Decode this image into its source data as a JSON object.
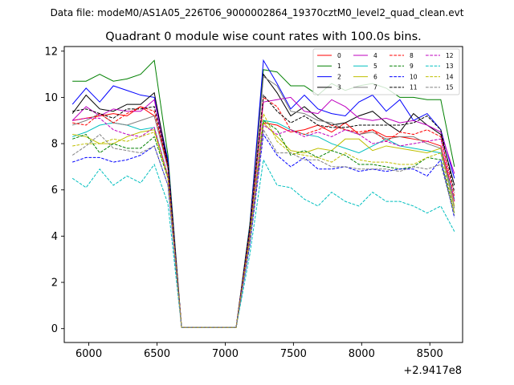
{
  "chart_data": {
    "type": "line",
    "suptitle": "Data file: modeM0/AS1A05_226T06_9000002864_19370cztM0_level2_quad_clean.evt",
    "title": "Quadrant 0 module wise count rates with 100.0s bins.",
    "xlabel": "",
    "ylabel": "",
    "x_offset_label": "+2.9417e8",
    "xlim": [
      5820,
      8740
    ],
    "ylim": [
      -0.6,
      12.2
    ],
    "xticks": [
      6000,
      6500,
      7000,
      7500,
      8000,
      8500
    ],
    "yticks": [
      0,
      2,
      4,
      6,
      8,
      10,
      12
    ],
    "xtick_labels": [
      "6000",
      "6500",
      "7000",
      "7500",
      "8000",
      "8500"
    ],
    "ytick_labels": [
      "0",
      "2",
      "4",
      "6",
      "8",
      "10",
      "12"
    ],
    "legend_position": "top-right",
    "x": [
      5880,
      5980,
      6080,
      6180,
      6280,
      6380,
      6480,
      6580,
      6680,
      6780,
      6880,
      6980,
      7080,
      7180,
      7280,
      7380,
      7480,
      7580,
      7680,
      7780,
      7880,
      7980,
      8080,
      8180,
      8280,
      8380,
      8480,
      8580,
      8680
    ],
    "series": [
      {
        "name": "0",
        "color": "#ff0000",
        "dash": "solid",
        "values": [
          9.0,
          9.1,
          9.2,
          9.3,
          9.2,
          9.6,
          9.2,
          7.0,
          0.05,
          0.05,
          0.05,
          0.05,
          0.05,
          4.0,
          8.9,
          8.8,
          8.5,
          8.6,
          8.8,
          8.5,
          8.9,
          8.4,
          8.6,
          8.3,
          8.3,
          8.2,
          8.1,
          7.9,
          5.5
        ]
      },
      {
        "name": "1",
        "color": "#008000",
        "dash": "solid",
        "values": [
          10.7,
          10.7,
          11.0,
          10.7,
          10.8,
          11.0,
          11.6,
          7.5,
          0.05,
          0.05,
          0.05,
          0.05,
          0.05,
          4.5,
          11.2,
          11.1,
          10.5,
          10.5,
          10.1,
          10.6,
          10.3,
          10.5,
          10.6,
          10.4,
          10.0,
          10.0,
          9.9,
          9.9,
          7.0
        ]
      },
      {
        "name": "2",
        "color": "#0000ff",
        "dash": "solid",
        "values": [
          9.7,
          10.4,
          9.8,
          10.5,
          10.3,
          10.1,
          10.0,
          7.3,
          0.05,
          0.05,
          0.05,
          0.05,
          0.05,
          4.4,
          11.6,
          10.6,
          9.5,
          10.1,
          9.5,
          9.3,
          9.2,
          9.8,
          10.1,
          9.4,
          9.9,
          9.0,
          9.3,
          8.6,
          6.5
        ]
      },
      {
        "name": "3",
        "color": "#000000",
        "dash": "solid",
        "values": [
          9.3,
          10.1,
          9.5,
          9.4,
          9.7,
          9.7,
          10.2,
          7.1,
          0.05,
          0.05,
          0.05,
          0.05,
          0.05,
          4.3,
          11.0,
          10.2,
          9.2,
          9.6,
          9.1,
          8.8,
          8.9,
          9.2,
          9.4,
          8.9,
          8.5,
          9.3,
          8.8,
          8.4,
          6.2
        ]
      },
      {
        "name": "4",
        "color": "#bf00bf",
        "dash": "solid",
        "values": [
          9.0,
          9.6,
          9.2,
          9.5,
          9.4,
          9.4,
          9.9,
          7.0,
          0.05,
          0.05,
          0.05,
          0.05,
          0.05,
          4.2,
          9.8,
          9.9,
          10.0,
          9.4,
          9.3,
          9.9,
          9.6,
          9.1,
          9.0,
          9.1,
          8.9,
          9.0,
          8.8,
          8.5,
          6.7
        ]
      },
      {
        "name": "5",
        "color": "#00bfbf",
        "dash": "solid",
        "values": [
          8.3,
          8.5,
          8.8,
          8.9,
          8.8,
          8.6,
          8.7,
          6.6,
          0.05,
          0.05,
          0.05,
          0.05,
          0.05,
          4.0,
          9.0,
          8.9,
          8.6,
          8.4,
          8.3,
          8.0,
          7.8,
          7.6,
          7.9,
          8.2,
          7.9,
          7.8,
          7.7,
          7.6,
          5.6
        ]
      },
      {
        "name": "6",
        "color": "#bfbf00",
        "dash": "solid",
        "values": [
          8.4,
          8.3,
          8.0,
          8.0,
          8.3,
          8.5,
          8.6,
          6.6,
          0.05,
          0.05,
          0.05,
          0.05,
          0.05,
          3.9,
          8.9,
          8.3,
          7.7,
          7.6,
          7.8,
          7.7,
          8.2,
          8.2,
          7.7,
          7.9,
          7.8,
          7.7,
          7.6,
          7.8,
          5.3
        ]
      },
      {
        "name": "7",
        "color": "#808080",
        "dash": "solid",
        "values": [
          8.8,
          9.0,
          9.3,
          8.9,
          8.8,
          9.0,
          9.2,
          6.9,
          0.05,
          0.05,
          0.05,
          0.05,
          0.05,
          4.2,
          10.9,
          10.5,
          9.4,
          9.3,
          9.0,
          8.9,
          8.6,
          8.4,
          8.5,
          8.2,
          8.3,
          8.3,
          8.0,
          7.8,
          5.2
        ]
      },
      {
        "name": "8",
        "color": "#ff0000",
        "dash": "dashed",
        "values": [
          8.9,
          8.8,
          9.3,
          8.9,
          9.3,
          9.6,
          9.4,
          7.0,
          0.05,
          0.05,
          0.05,
          0.05,
          0.05,
          4.3,
          10.0,
          9.6,
          8.6,
          8.4,
          8.6,
          8.8,
          8.6,
          8.5,
          8.6,
          8.1,
          8.5,
          8.4,
          8.6,
          8.3,
          5.7
        ]
      },
      {
        "name": "9",
        "color": "#008000",
        "dash": "dashed",
        "values": [
          8.2,
          8.4,
          7.6,
          8.0,
          7.8,
          7.8,
          8.3,
          6.5,
          0.05,
          0.05,
          0.05,
          0.05,
          0.05,
          3.8,
          9.0,
          8.6,
          7.5,
          7.7,
          7.4,
          7.7,
          7.5,
          7.1,
          7.1,
          7.0,
          6.9,
          7.0,
          7.4,
          7.3,
          5.0
        ]
      },
      {
        "name": "10",
        "color": "#0000ff",
        "dash": "dashed",
        "values": [
          7.2,
          7.4,
          7.4,
          7.2,
          7.3,
          7.5,
          7.9,
          6.2,
          0.05,
          0.05,
          0.05,
          0.05,
          0.05,
          3.6,
          8.4,
          7.5,
          7.0,
          7.4,
          6.9,
          6.9,
          7.0,
          6.8,
          6.9,
          6.8,
          6.9,
          6.9,
          6.6,
          7.3,
          4.8
        ]
      },
      {
        "name": "11",
        "color": "#000000",
        "dash": "dashed",
        "values": [
          9.4,
          9.5,
          9.3,
          9.1,
          9.5,
          9.5,
          9.6,
          7.1,
          0.05,
          0.05,
          0.05,
          0.05,
          0.05,
          4.3,
          10.1,
          9.4,
          8.9,
          9.2,
          8.8,
          8.7,
          8.7,
          8.8,
          8.8,
          8.8,
          8.8,
          8.9,
          9.2,
          8.6,
          5.9
        ]
      },
      {
        "name": "12",
        "color": "#bf00bf",
        "dash": "dashed",
        "values": [
          9.0,
          9.1,
          9.1,
          8.6,
          8.4,
          8.3,
          8.7,
          6.6,
          0.05,
          0.05,
          0.05,
          0.05,
          0.05,
          4.0,
          8.8,
          8.4,
          8.6,
          8.3,
          8.5,
          8.3,
          8.6,
          8.4,
          8.0,
          8.1,
          7.9,
          8.0,
          8.1,
          8.2,
          5.5
        ]
      },
      {
        "name": "13",
        "color": "#00bfbf",
        "dash": "dashed",
        "values": [
          6.5,
          6.1,
          6.9,
          6.2,
          6.6,
          6.3,
          7.1,
          5.4,
          0.05,
          0.05,
          0.05,
          0.05,
          0.05,
          3.2,
          7.3,
          6.2,
          6.1,
          5.6,
          5.3,
          5.9,
          5.5,
          5.3,
          5.9,
          5.5,
          5.5,
          5.3,
          5.0,
          5.3,
          4.2
        ]
      },
      {
        "name": "14",
        "color": "#bfbf00",
        "dash": "dashed",
        "values": [
          7.9,
          8.0,
          8.0,
          8.2,
          8.1,
          8.3,
          8.5,
          6.5,
          0.05,
          0.05,
          0.05,
          0.05,
          0.05,
          3.9,
          9.3,
          8.1,
          7.6,
          7.5,
          7.4,
          7.2,
          7.6,
          7.3,
          7.2,
          7.2,
          7.1,
          7.1,
          7.4,
          7.6,
          5.0
        ]
      },
      {
        "name": "15",
        "color": "#808080",
        "dash": "dashed",
        "values": [
          7.5,
          7.9,
          8.4,
          7.8,
          7.7,
          7.6,
          7.9,
          6.2,
          0.05,
          0.05,
          0.05,
          0.05,
          0.05,
          3.7,
          8.6,
          7.6,
          7.6,
          7.3,
          7.3,
          7.0,
          7.0,
          6.9,
          6.9,
          6.9,
          6.8,
          7.0,
          6.9,
          7.1,
          4.9
        ]
      }
    ]
  }
}
